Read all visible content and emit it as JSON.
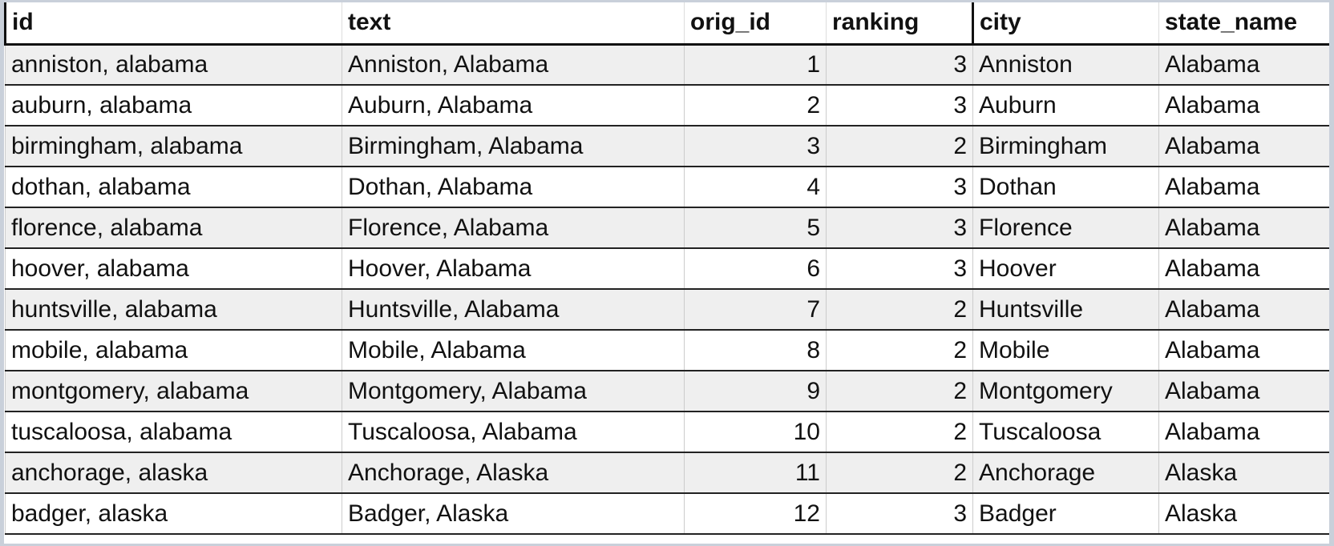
{
  "table": {
    "columns": [
      "id",
      "text",
      "orig_id",
      "ranking",
      "city",
      "state_name"
    ],
    "rows": [
      [
        "anniston, alabama",
        "Anniston, Alabama",
        1,
        3,
        "Anniston",
        "Alabama"
      ],
      [
        "auburn, alabama",
        "Auburn, Alabama",
        2,
        3,
        "Auburn",
        "Alabama"
      ],
      [
        "birmingham, alabama",
        "Birmingham, Alabama",
        3,
        2,
        "Birmingham",
        "Alabama"
      ],
      [
        "dothan, alabama",
        "Dothan, Alabama",
        4,
        3,
        "Dothan",
        "Alabama"
      ],
      [
        "florence, alabama",
        "Florence, Alabama",
        5,
        3,
        "Florence",
        "Alabama"
      ],
      [
        "hoover, alabama",
        "Hoover, Alabama",
        6,
        3,
        "Hoover",
        "Alabama"
      ],
      [
        "huntsville, alabama",
        "Huntsville, Alabama",
        7,
        2,
        "Huntsville",
        "Alabama"
      ],
      [
        "mobile, alabama",
        "Mobile, Alabama",
        8,
        2,
        "Mobile",
        "Alabama"
      ],
      [
        "montgomery, alabama",
        "Montgomery, Alabama",
        9,
        2,
        "Montgomery",
        "Alabama"
      ],
      [
        "tuscaloosa, alabama",
        "Tuscaloosa, Alabama",
        10,
        2,
        "Tuscaloosa",
        "Alabama"
      ],
      [
        "anchorage, alaska",
        "Anchorage, Alaska",
        11,
        2,
        "Anchorage",
        "Alaska"
      ],
      [
        "badger, alaska",
        "Badger, Alaska",
        12,
        3,
        "Badger",
        "Alaska"
      ]
    ]
  }
}
